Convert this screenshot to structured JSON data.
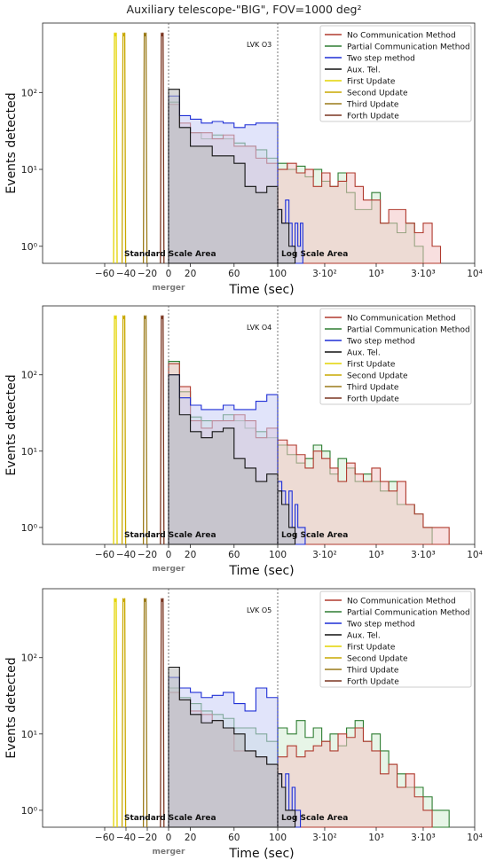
{
  "figure": {
    "title": "Auxiliary telescope-\"BIG\", FOV=1000 deg²"
  },
  "chart_data": [
    {
      "type": "histogram",
      "panel_label": "LVK O3",
      "ylabel": "Events detected",
      "xlabel": "Time (sec)",
      "yscale": "log",
      "ylim": [
        0.6,
        800
      ],
      "y_ticks": [
        "10⁰",
        "10¹",
        "10²"
      ],
      "x_ticks": [
        "−60",
        "−40",
        "−20",
        "0",
        "20",
        "60",
        "100",
        "3·10²",
        "10³",
        "3·10³",
        "10⁴"
      ],
      "region_labels": [
        "Standard Scale Area",
        "Log Scale Area"
      ],
      "vertical_marker": "merger",
      "legend": [
        "No Communication Method",
        "Partial Communication Method",
        "Two step method",
        "Aux. Tel.",
        "First Update",
        "Second Update",
        "Third Update",
        "Forth Update"
      ],
      "series": [
        {
          "name": "No Communication Method",
          "color": "#b03a2e",
          "fill": "#f2c4c4",
          "lin_edges": [
            0,
            10,
            20,
            30,
            40,
            50,
            60,
            70,
            80,
            90,
            100
          ],
          "lin_values": [
            70,
            40,
            30,
            30,
            25,
            28,
            20,
            20,
            14,
            12
          ],
          "log_edges": [
            100,
            125,
            155,
            190,
            230,
            280,
            340,
            410,
            500,
            610,
            740,
            900,
            1100,
            1340,
            1630,
            2000,
            2450,
            3000,
            3700,
            4500
          ],
          "log_values": [
            10,
            12,
            9,
            10,
            6,
            9,
            6,
            7,
            9,
            6,
            4,
            4,
            2,
            3,
            3,
            2,
            1.5,
            2,
            1
          ]
        },
        {
          "name": "Partial Communication Method",
          "color": "#2e7d32",
          "fill": "#d4ecd4",
          "lin_edges": [
            0,
            10,
            20,
            30,
            40,
            50,
            60,
            70,
            80,
            90,
            100
          ],
          "lin_values": [
            75,
            35,
            30,
            25,
            28,
            25,
            22,
            20,
            18,
            14
          ],
          "log_edges": [
            100,
            125,
            155,
            190,
            230,
            280,
            340,
            410,
            500,
            610,
            740,
            900,
            1100,
            1340,
            1630,
            2000,
            2450,
            3000
          ],
          "log_values": [
            12,
            10,
            11,
            8,
            10,
            7,
            6,
            9,
            5,
            3,
            3,
            5,
            2,
            2,
            1.5,
            2,
            1
          ]
        },
        {
          "name": "Two step method",
          "color": "#1f2fd6",
          "fill": "#c8cdf5",
          "lin_edges": [
            0,
            10,
            20,
            30,
            40,
            50,
            60,
            70,
            80,
            90,
            100
          ],
          "lin_values": [
            90,
            50,
            45,
            40,
            42,
            40,
            35,
            38,
            40,
            40
          ],
          "log_edges": [
            100,
            110,
            120,
            130,
            140,
            150,
            160,
            170,
            180
          ],
          "log_values": [
            3,
            2,
            4,
            2,
            1,
            2,
            1,
            2
          ]
        },
        {
          "name": "Aux. Tel.",
          "color": "#111111",
          "fill": "#b8b8b8",
          "lin_edges": [
            0,
            10,
            20,
            30,
            40,
            50,
            60,
            70,
            80,
            90,
            100
          ],
          "lin_values": [
            110,
            35,
            20,
            20,
            15,
            15,
            12,
            6,
            5,
            6
          ],
          "log_edges": [
            100,
            110,
            120,
            130,
            140,
            150
          ],
          "log_values": [
            3,
            2,
            2,
            1,
            1
          ]
        }
      ]
    },
    {
      "type": "histogram",
      "panel_label": "LVK O4",
      "ylabel": "Events detected",
      "xlabel": "Time (sec)",
      "yscale": "log",
      "ylim": [
        0.6,
        800
      ],
      "y_ticks": [
        "10⁰",
        "10¹",
        "10²"
      ],
      "x_ticks": [
        "−60",
        "−40",
        "−20",
        "0",
        "20",
        "60",
        "100",
        "3·10²",
        "10³",
        "3·10³",
        "10⁴"
      ],
      "region_labels": [
        "Standard Scale Area",
        "Log Scale Area"
      ],
      "vertical_marker": "merger",
      "legend": [
        "No Communication Method",
        "Partial Communication Method",
        "Two step method",
        "Aux. Tel.",
        "First Update",
        "Second Update",
        "Third Update",
        "Forth Update"
      ],
      "series": [
        {
          "name": "No Communication Method",
          "color": "#b03a2e",
          "fill": "#f2c4c4",
          "lin_edges": [
            0,
            10,
            20,
            30,
            40,
            50,
            60,
            70,
            80,
            90,
            100
          ],
          "lin_values": [
            140,
            70,
            25,
            20,
            25,
            25,
            30,
            25,
            15,
            20
          ],
          "log_edges": [
            100,
            125,
            155,
            190,
            230,
            280,
            340,
            410,
            500,
            610,
            740,
            900,
            1100,
            1340,
            1630,
            2000,
            2450,
            3000,
            3700,
            4500,
            5500
          ],
          "log_values": [
            14,
            12,
            9,
            6,
            10,
            8,
            6,
            4,
            7,
            5,
            4,
            6,
            4,
            3,
            4,
            2,
            1.5,
            1,
            1,
            1
          ]
        },
        {
          "name": "Partial Communication Method",
          "color": "#2e7d32",
          "fill": "#d4ecd4",
          "lin_edges": [
            0,
            10,
            20,
            30,
            40,
            50,
            60,
            70,
            80,
            90,
            100
          ],
          "lin_values": [
            150,
            60,
            28,
            25,
            25,
            30,
            25,
            20,
            18,
            15
          ],
          "log_edges": [
            100,
            125,
            155,
            190,
            230,
            280,
            340,
            410,
            500,
            610,
            740,
            900,
            1100,
            1340,
            1630,
            2000,
            2450,
            3000,
            3700
          ],
          "log_values": [
            12,
            9,
            7,
            8,
            12,
            10,
            5,
            8,
            6,
            4,
            5,
            4,
            3,
            4,
            2,
            2,
            1.5,
            1
          ]
        },
        {
          "name": "Two step method",
          "color": "#1f2fd6",
          "fill": "#c8cdf5",
          "lin_edges": [
            0,
            10,
            20,
            30,
            40,
            50,
            60,
            70,
            80,
            90,
            100
          ],
          "lin_values": [
            100,
            50,
            40,
            35,
            35,
            40,
            35,
            35,
            45,
            55
          ],
          "log_edges": [
            100,
            110,
            120,
            130,
            140,
            150,
            160,
            170,
            180,
            190
          ],
          "log_values": [
            4,
            3,
            2,
            3,
            1,
            2,
            1,
            1,
            1
          ]
        },
        {
          "name": "Aux. Tel.",
          "color": "#111111",
          "fill": "#b8b8b8",
          "lin_edges": [
            0,
            10,
            20,
            30,
            40,
            50,
            60,
            70,
            80,
            90,
            100
          ],
          "lin_values": [
            100,
            30,
            18,
            15,
            18,
            20,
            8,
            6,
            4,
            5
          ],
          "log_edges": [
            100,
            110,
            120,
            130,
            140,
            150
          ],
          "log_values": [
            3,
            2,
            2,
            1,
            1
          ]
        }
      ]
    },
    {
      "type": "histogram",
      "panel_label": "LVK O5",
      "ylabel": "Events detected",
      "xlabel": "Time (sec)",
      "yscale": "log",
      "ylim": [
        0.6,
        800
      ],
      "y_ticks": [
        "10⁰",
        "10¹",
        "10²"
      ],
      "x_ticks": [
        "−60",
        "−40",
        "−20",
        "0",
        "20",
        "60",
        "100",
        "3·10²",
        "10³",
        "3·10³",
        "10⁴"
      ],
      "region_labels": [
        "Standard Scale Area",
        "Log Scale Area"
      ],
      "vertical_marker": "merger",
      "legend": [
        "No Communication Method",
        "Partial Communication Method",
        "Two step method",
        "Aux. Tel.",
        "First Update",
        "Second Update",
        "Third Update",
        "Forth Update"
      ],
      "series": [
        {
          "name": "No Communication Method",
          "color": "#b03a2e",
          "fill": "#f2c4c4",
          "lin_edges": [
            0,
            10,
            20,
            30,
            40,
            50,
            60,
            70,
            80,
            90,
            100
          ],
          "lin_values": [
            35,
            28,
            20,
            18,
            15,
            12,
            6,
            6,
            5,
            4
          ],
          "log_edges": [
            100,
            125,
            155,
            190,
            230,
            280,
            340,
            410,
            500,
            610,
            740,
            900,
            1100,
            1340,
            1630,
            2000,
            2450,
            3000,
            3700
          ],
          "log_values": [
            5,
            7,
            5,
            6,
            7,
            8,
            6,
            10,
            9,
            12,
            8,
            6,
            3,
            4,
            2,
            3,
            1.5,
            1
          ]
        },
        {
          "name": "Partial Communication Method",
          "color": "#2e7d32",
          "fill": "#d4ecd4",
          "lin_edges": [
            0,
            10,
            20,
            30,
            40,
            50,
            60,
            70,
            80,
            90,
            100
          ],
          "lin_values": [
            40,
            30,
            25,
            20,
            18,
            16,
            12,
            12,
            10,
            8
          ],
          "log_edges": [
            100,
            125,
            155,
            190,
            230,
            280,
            340,
            410,
            500,
            610,
            740,
            900,
            1100,
            1340,
            1630,
            2000,
            2450,
            3000,
            3700,
            4500,
            5500
          ],
          "log_values": [
            12,
            10,
            15,
            9,
            12,
            8,
            10,
            7,
            12,
            15,
            8,
            10,
            6,
            4,
            3,
            2,
            2,
            1.5,
            1,
            1
          ]
        },
        {
          "name": "Two step method",
          "color": "#1f2fd6",
          "fill": "#c8cdf5",
          "lin_edges": [
            0,
            10,
            20,
            30,
            40,
            50,
            60,
            70,
            80,
            90,
            100
          ],
          "lin_values": [
            55,
            40,
            35,
            30,
            32,
            35,
            25,
            20,
            40,
            30
          ],
          "log_edges": [
            100,
            110,
            120,
            130,
            140,
            150,
            160,
            170
          ],
          "log_values": [
            3,
            2,
            3,
            1,
            2,
            1,
            1
          ]
        },
        {
          "name": "Aux. Tel.",
          "color": "#111111",
          "fill": "#b8b8b8",
          "lin_edges": [
            0,
            10,
            20,
            30,
            40,
            50,
            60,
            70,
            80,
            90,
            100
          ],
          "lin_values": [
            75,
            28,
            18,
            14,
            15,
            12,
            10,
            6,
            5,
            4
          ],
          "log_edges": [
            100,
            110,
            120,
            130,
            140,
            150
          ],
          "log_values": [
            3,
            2,
            1,
            1,
            1
          ]
        }
      ]
    }
  ],
  "updates": [
    {
      "name": "First Update",
      "color": "#e3d300",
      "x_values": [
        -50
      ]
    },
    {
      "name": "Second Update",
      "color": "#c9a800",
      "x_values": [
        -42
      ]
    },
    {
      "name": "Third Update",
      "color": "#9a7a18",
      "x_values": [
        -22
      ]
    },
    {
      "name": "Forth Update",
      "color": "#7a3520",
      "x_values": [
        -6
      ]
    }
  ]
}
